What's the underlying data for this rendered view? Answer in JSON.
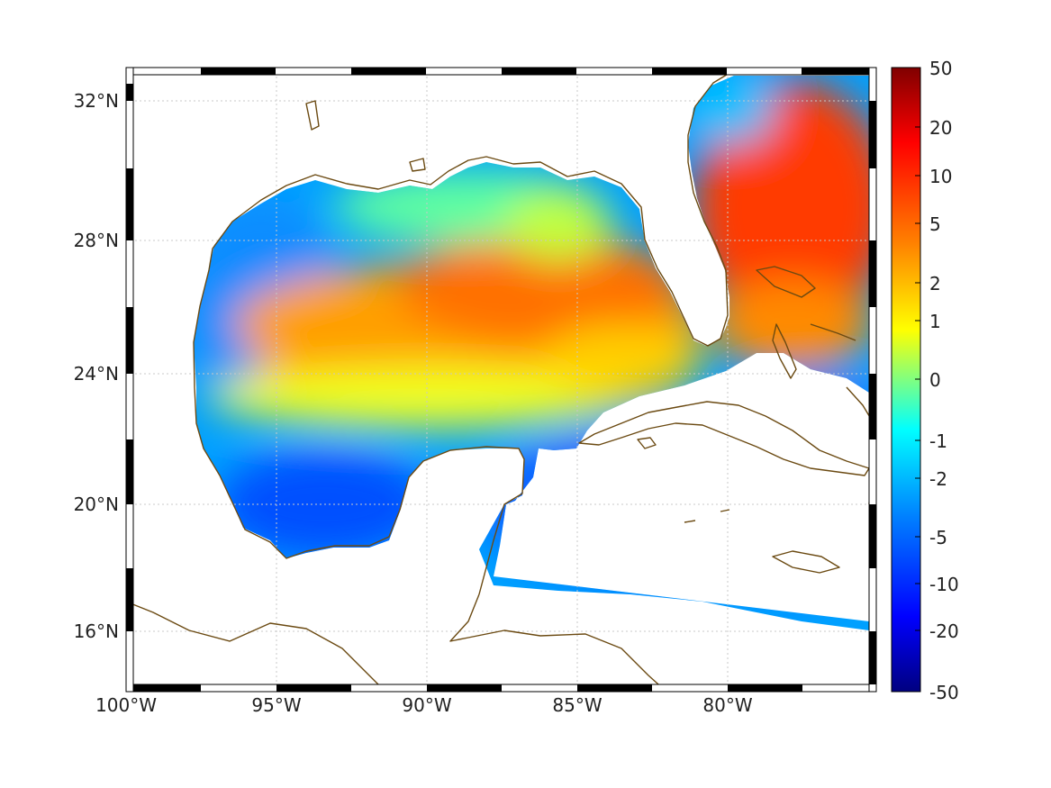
{
  "map": {
    "longitude_labels": [
      "100°W",
      "95°W",
      "90°W",
      "85°W",
      "80°W"
    ],
    "latitude_labels": [
      "32°N",
      "28°N",
      "24°N",
      "20°N",
      "16°N"
    ],
    "extent": {
      "lon_min": -100,
      "lon_max": -75.3,
      "lat_min": 14.3,
      "lat_max": 33.0
    },
    "grid": "dotted",
    "frame": "black-and-white alternating border",
    "coastline_color": "#6b4a12",
    "land_color": "#ffffff"
  },
  "colorbar": {
    "tick_labels": [
      "50",
      "20",
      "10",
      "5",
      "2",
      "1",
      "0",
      "-1",
      "-2",
      "-5",
      "-10",
      "-20",
      "-50"
    ],
    "colormap": "jet",
    "colors": [
      "#800000",
      "#ff0000",
      "#ff8000",
      "#ffff00",
      "#80ff80",
      "#00ffff",
      "#0080ff",
      "#0000ff",
      "#000080"
    ]
  }
}
